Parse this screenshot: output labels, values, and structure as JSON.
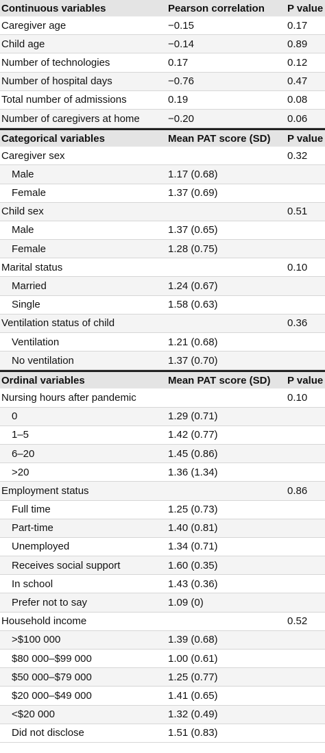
{
  "sections": [
    {
      "headers": [
        "Continuous variables",
        "Pearson correlation",
        "P value"
      ],
      "rows": [
        {
          "label": "Caregiver age",
          "value": "−0.15",
          "p": "0.17",
          "sub": false
        },
        {
          "label": "Child age",
          "value": "−0.14",
          "p": "0.89",
          "sub": false
        },
        {
          "label": "Number of technologies",
          "value": "0.17",
          "p": "0.12",
          "sub": false
        },
        {
          "label": "Number of hospital days",
          "value": "−0.76",
          "p": "0.47",
          "sub": false
        },
        {
          "label": "Total number of admissions",
          "value": "0.19",
          "p": "0.08",
          "sub": false
        },
        {
          "label": "Number of caregivers at home",
          "value": "−0.20",
          "p": "0.06",
          "sub": false
        }
      ]
    },
    {
      "headers": [
        "Categorical variables",
        "Mean PAT score (SD)",
        "P value"
      ],
      "rows": [
        {
          "label": "Caregiver sex",
          "value": "",
          "p": "0.32",
          "sub": false
        },
        {
          "label": "Male",
          "value": "1.17 (0.68)",
          "p": "",
          "sub": true
        },
        {
          "label": "Female",
          "value": "1.37 (0.69)",
          "p": "",
          "sub": true
        },
        {
          "label": "Child sex",
          "value": "",
          "p": "0.51",
          "sub": false
        },
        {
          "label": "Male",
          "value": "1.37 (0.65)",
          "p": "",
          "sub": true
        },
        {
          "label": "Female",
          "value": "1.28 (0.75)",
          "p": "",
          "sub": true
        },
        {
          "label": "Marital status",
          "value": "",
          "p": "0.10",
          "sub": false
        },
        {
          "label": "Married",
          "value": "1.24 (0.67)",
          "p": "",
          "sub": true
        },
        {
          "label": "Single",
          "value": "1.58 (0.63)",
          "p": "",
          "sub": true
        },
        {
          "label": "Ventilation status of child",
          "value": "",
          "p": "0.36",
          "sub": false
        },
        {
          "label": "Ventilation",
          "value": "1.21 (0.68)",
          "p": "",
          "sub": true
        },
        {
          "label": "No ventilation",
          "value": "1.37 (0.70)",
          "p": "",
          "sub": true
        }
      ]
    },
    {
      "headers": [
        "Ordinal variables",
        "Mean PAT score (SD)",
        "P value"
      ],
      "rows": [
        {
          "label": "Nursing hours after pandemic",
          "value": "",
          "p": "0.10",
          "sub": false
        },
        {
          "label": "0",
          "value": "1.29 (0.71)",
          "p": "",
          "sub": true
        },
        {
          "label": "1–5",
          "value": "1.42 (0.77)",
          "p": "",
          "sub": true
        },
        {
          "label": "6–20",
          "value": "1.45 (0.86)",
          "p": "",
          "sub": true
        },
        {
          "label": ">20",
          "value": "1.36 (1.34)",
          "p": "",
          "sub": true
        },
        {
          "label": "Employment status",
          "value": "",
          "p": "0.86",
          "sub": false
        },
        {
          "label": "Full time",
          "value": "1.25 (0.73)",
          "p": "",
          "sub": true
        },
        {
          "label": "Part-time",
          "value": "1.40 (0.81)",
          "p": "",
          "sub": true
        },
        {
          "label": "Unemployed",
          "value": "1.34 (0.71)",
          "p": "",
          "sub": true
        },
        {
          "label": "Receives social support",
          "value": "1.60 (0.35)",
          "p": "",
          "sub": true
        },
        {
          "label": "In school",
          "value": "1.43 (0.36)",
          "p": "",
          "sub": true
        },
        {
          "label": "Prefer not to say",
          "value": "1.09 (0)",
          "p": "",
          "sub": true
        },
        {
          "label": "Household income",
          "value": "",
          "p": "0.52",
          "sub": false
        },
        {
          "label": ">$100 000",
          "value": "1.39 (0.68)",
          "p": "",
          "sub": true
        },
        {
          "label": "$80 000–$99 000",
          "value": "1.00 (0.61)",
          "p": "",
          "sub": true
        },
        {
          "label": "$50 000–$79 000",
          "value": "1.25 (0.77)",
          "p": "",
          "sub": true
        },
        {
          "label": "$20 000–$49 000",
          "value": "1.41 (0.65)",
          "p": "",
          "sub": true
        },
        {
          "label": "<$20 000",
          "value": "1.32 (0.49)",
          "p": "",
          "sub": true
        },
        {
          "label": "Did not disclose",
          "value": "1.51 (0.83)",
          "p": "",
          "sub": true
        }
      ]
    }
  ]
}
